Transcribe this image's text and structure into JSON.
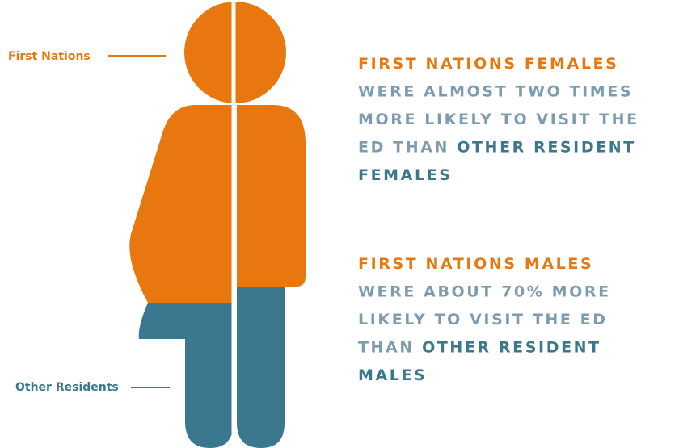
{
  "labels": {
    "first_nations": "First Nations",
    "other_residents": "Other Residents"
  },
  "colors": {
    "accent": "#e8770f",
    "muted": "#7c9cb2",
    "teal": "#3b7890"
  },
  "statements": [
    {
      "lines": [
        [
          {
            "text": "FIRST NATIONS FEMALES",
            "tone": "accent"
          }
        ],
        [
          {
            "text": "WERE ALMOST TWO TIMES",
            "tone": "muted"
          }
        ],
        [
          {
            "text": "MORE LIKELY TO VISIT THE",
            "tone": "muted"
          }
        ],
        [
          {
            "text": "ED THAN ",
            "tone": "muted"
          },
          {
            "text": "OTHER RESIDENT",
            "tone": "teal"
          }
        ],
        [
          {
            "text": "FEMALES",
            "tone": "teal"
          }
        ]
      ]
    },
    {
      "lines": [
        [
          {
            "text": "FIRST NATIONS MALES",
            "tone": "accent"
          }
        ],
        [
          {
            "text": "WERE ABOUT 70% MORE",
            "tone": "muted"
          }
        ],
        [
          {
            "text": "LIKELY TO VISIT THE ED",
            "tone": "muted"
          }
        ],
        [
          {
            "text": "THAN ",
            "tone": "muted"
          },
          {
            "text": "OTHER RESIDENT",
            "tone": "teal"
          }
        ],
        [
          {
            "text": "MALES",
            "tone": "teal"
          }
        ]
      ]
    }
  ]
}
